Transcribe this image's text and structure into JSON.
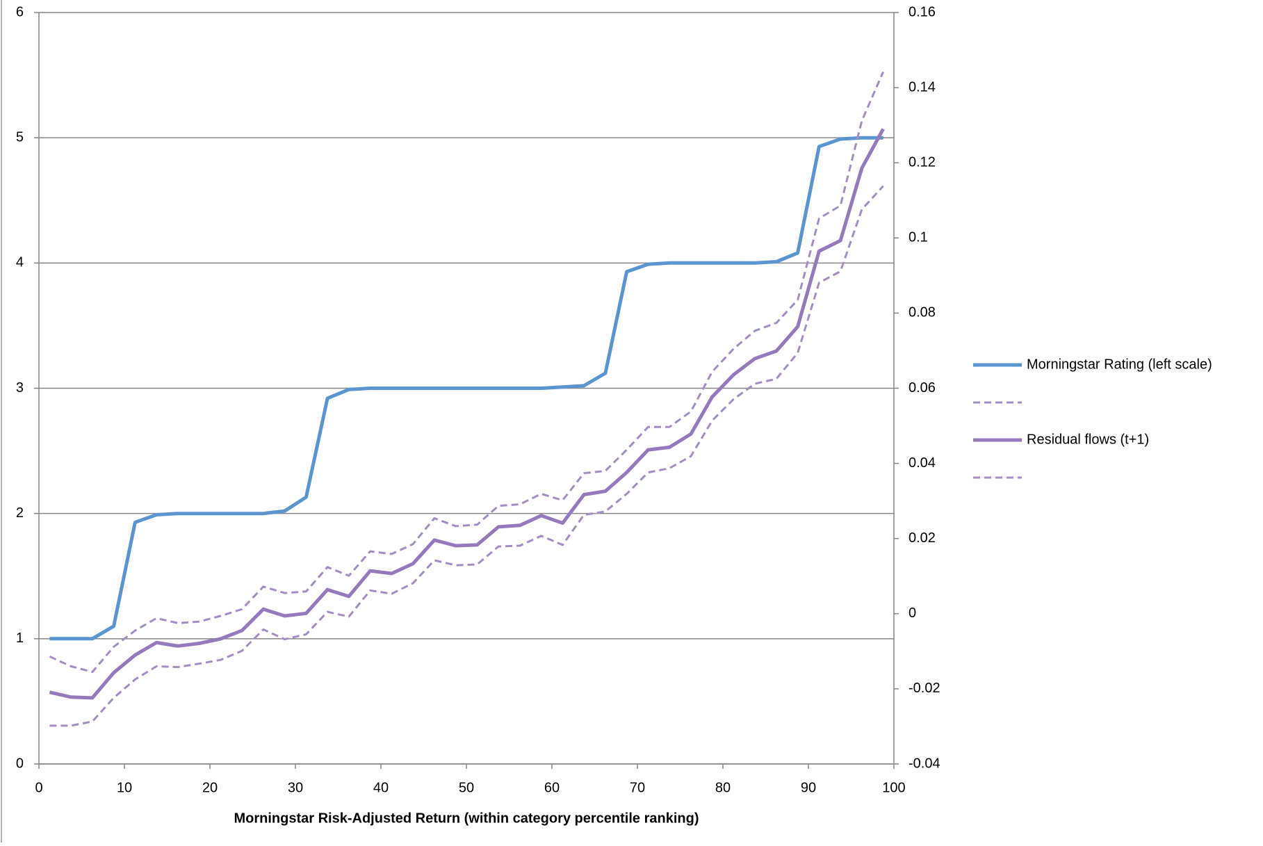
{
  "chart_data": {
    "type": "line",
    "x_label": "Morningstar Risk-Adjusted Return (within category percentile ranking)",
    "x": [
      1.25,
      3.75,
      6.25,
      8.75,
      11.25,
      13.75,
      16.25,
      18.75,
      21.25,
      23.75,
      26.25,
      28.75,
      31.25,
      33.75,
      36.25,
      38.75,
      41.25,
      43.75,
      46.25,
      48.75,
      51.25,
      53.75,
      56.25,
      58.75,
      61.25,
      63.75,
      66.25,
      68.75,
      71.25,
      73.75,
      76.25,
      78.75,
      81.25,
      83.75,
      86.25,
      88.75,
      91.25,
      93.75,
      96.25,
      98.75
    ],
    "xlim": [
      0,
      100
    ],
    "xticks": [
      0,
      10,
      20,
      30,
      40,
      50,
      60,
      70,
      80,
      90,
      100
    ],
    "ylim": [
      0,
      6
    ],
    "yticks": [
      0,
      1,
      2,
      3,
      4,
      5,
      6
    ],
    "y2lim": [
      -0.04,
      0.16
    ],
    "y2ticks": [
      -0.04,
      -0.02,
      0,
      0.02,
      0.04,
      0.06,
      0.08,
      0.1,
      0.12,
      0.14,
      0.16
    ],
    "grid": true,
    "legend": "right",
    "series": [
      {
        "name": "Morningstar Rating (left scale)",
        "color": "#5a95cf",
        "dashed": false,
        "axis": "y",
        "values": [
          1.0,
          1.0,
          1.0,
          1.1,
          1.93,
          1.99,
          2.0,
          2.0,
          2.0,
          2.0,
          2.0,
          2.02,
          2.13,
          2.92,
          2.99,
          3.0,
          3.0,
          3.0,
          3.0,
          3.0,
          3.0,
          3.0,
          3.0,
          3.0,
          3.01,
          3.02,
          3.12,
          3.93,
          3.99,
          4.0,
          4.0,
          4.0,
          4.0,
          4.0,
          4.01,
          4.08,
          4.93,
          4.99,
          5.0,
          5.0
        ]
      },
      {
        "name": null,
        "color": "#a48dc7",
        "dashed": true,
        "axis": "y2",
        "values": [
          -0.0114,
          -0.014,
          -0.0155,
          -0.0088,
          -0.0045,
          -0.0012,
          -0.0025,
          -0.0021,
          -0.0006,
          0.0012,
          0.0072,
          0.0055,
          0.0059,
          0.0124,
          0.0101,
          0.0166,
          0.0159,
          0.0185,
          0.0254,
          0.0233,
          0.0237,
          0.0287,
          0.0291,
          0.0319,
          0.0302,
          0.0374,
          0.038,
          0.0436,
          0.0497,
          0.0497,
          0.0538,
          0.0644,
          0.0705,
          0.0753,
          0.0774,
          0.0835,
          0.1052,
          0.1086,
          0.1312,
          0.1442
        ]
      },
      {
        "name": "Residual flows (t+1)",
        "color": "#9479bd",
        "dashed": false,
        "axis": "y2",
        "values": [
          -0.0209,
          -0.0222,
          -0.0224,
          -0.0157,
          -0.011,
          -0.0077,
          -0.0086,
          -0.0079,
          -0.0067,
          -0.0045,
          0.0012,
          -0.0006,
          0.0001,
          0.0064,
          0.0046,
          0.0114,
          0.0107,
          0.0133,
          0.0196,
          0.0181,
          0.0183,
          0.0231,
          0.0235,
          0.0261,
          0.0241,
          0.0317,
          0.0326,
          0.0376,
          0.0436,
          0.0443,
          0.0478,
          0.0577,
          0.0636,
          0.0679,
          0.0699,
          0.0764,
          0.0965,
          0.0993,
          0.1186,
          0.129
        ]
      },
      {
        "name": null,
        "color": "#a48dc7",
        "dashed": true,
        "axis": "y2",
        "values": [
          -0.0298,
          -0.0298,
          -0.0287,
          -0.0224,
          -0.0175,
          -0.014,
          -0.0142,
          -0.0133,
          -0.0123,
          -0.0099,
          -0.0042,
          -0.0068,
          -0.0055,
          0.0005,
          -0.0008,
          0.0062,
          0.0053,
          0.0081,
          0.0142,
          0.0129,
          0.0131,
          0.0179,
          0.0181,
          0.0207,
          0.0183,
          0.0263,
          0.0272,
          0.0319,
          0.0376,
          0.0387,
          0.0419,
          0.0514,
          0.0571,
          0.0612,
          0.0625,
          0.0694,
          0.0881,
          0.0911,
          0.1076,
          0.1138
        ]
      }
    ]
  }
}
